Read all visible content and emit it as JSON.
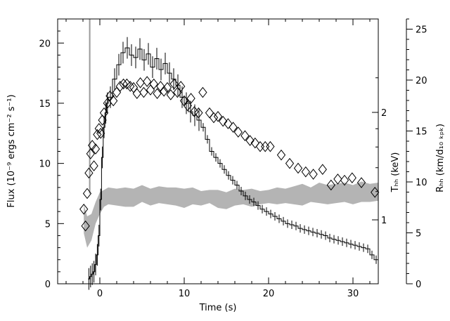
{
  "chart_data": {
    "type": "line",
    "title": "",
    "xlabel": "Time (s)",
    "ylabel_left": "Flux (10⁻⁹ ergs cm⁻² s⁻¹)",
    "ylabel_right_inner": "Tₕₕ (keV)",
    "ylabel_right_outer": "Rₕₕ (km/d₁₀ ₖₚₖ)",
    "xlim": [
      -5,
      33
    ],
    "ylim_flux": [
      0,
      22
    ],
    "ylim_radius": [
      0,
      26
    ],
    "x_ticks": [
      "0",
      "10",
      "20",
      "30"
    ],
    "y_ticks_flux": [
      "0",
      "5",
      "10",
      "15",
      "20"
    ],
    "y_ticks_temp": [
      "1",
      "2"
    ],
    "y_ticks_radius": [
      "0",
      "5",
      "10",
      "15",
      "20",
      "25"
    ],
    "series": [
      {
        "name": "Flux",
        "style": "histogram with error bars",
        "x": [
          -1.4,
          -1.2,
          -1.0,
          -0.8,
          -0.6,
          -0.4,
          -0.2,
          0.0,
          0.2,
          0.4,
          0.6,
          0.8,
          1.0,
          1.5,
          2.0,
          2.5,
          3.0,
          3.5,
          4.0,
          4.5,
          5.0,
          5.5,
          6.0,
          6.5,
          7.0,
          7.5,
          8.0,
          8.5,
          9.0,
          9.5,
          10.0,
          10.5,
          11.0,
          11.5,
          12.0,
          12.5,
          13.0,
          13.5,
          14.0,
          14.5,
          15.0,
          15.5,
          16.0,
          16.5,
          17.0,
          17.5,
          18.0,
          18.5,
          19.0,
          19.5,
          20.0,
          20.5,
          21.0,
          21.5,
          22.0,
          22.5,
          23.0,
          23.5,
          24.0,
          24.5,
          25.0,
          25.5,
          26.0,
          26.5,
          27.0,
          27.5,
          28.0,
          28.5,
          29.0,
          29.5,
          30.0,
          30.5,
          31.0,
          31.5,
          32.0,
          32.5
        ],
        "y": [
          0.4,
          0.6,
          0.8,
          1.0,
          1.6,
          2.4,
          4.0,
          7.0,
          10.5,
          13.0,
          14.2,
          15.0,
          15.5,
          17.0,
          18.2,
          19.2,
          19.6,
          19.0,
          18.8,
          19.5,
          18.6,
          19.1,
          18.0,
          18.7,
          17.8,
          18.3,
          17.5,
          17.0,
          16.5,
          15.5,
          15.0,
          14.3,
          14.0,
          13.6,
          13.0,
          12.0,
          11.0,
          10.5,
          10.0,
          9.5,
          9.0,
          8.6,
          8.2,
          7.7,
          7.3,
          7.0,
          6.8,
          6.5,
          6.2,
          6.0,
          5.8,
          5.6,
          5.4,
          5.2,
          5.0,
          4.9,
          4.8,
          4.6,
          4.5,
          4.4,
          4.3,
          4.2,
          4.1,
          4.0,
          3.8,
          3.7,
          3.6,
          3.5,
          3.4,
          3.3,
          3.2,
          3.1,
          3.0,
          2.9,
          2.4,
          2.0
        ]
      },
      {
        "name": "T_bb",
        "style": "diamonds (plotted on flux scale)",
        "x": [
          -1.9,
          -1.7,
          -1.5,
          -1.3,
          -1.1,
          -0.9,
          -0.7,
          -0.5,
          -0.3,
          -0.1,
          0.1,
          0.3,
          0.5,
          0.9,
          1.2,
          1.6,
          2.0,
          2.4,
          2.8,
          3.2,
          3.6,
          4.0,
          4.4,
          4.8,
          5.2,
          5.6,
          6.0,
          6.4,
          6.8,
          7.2,
          7.6,
          8.0,
          8.4,
          8.8,
          9.2,
          9.6,
          10.0,
          10.4,
          10.8,
          11.2,
          11.7,
          12.2,
          13.0,
          13.5,
          14.0,
          14.6,
          15.2,
          15.8,
          16.4,
          17.2,
          17.8,
          18.4,
          19.0,
          19.6,
          20.2,
          21.5,
          22.5,
          23.5,
          24.4,
          25.3,
          26.4,
          27.4,
          28.2,
          29.0,
          29.9,
          31.0,
          32.6
        ],
        "y": [
          6.2,
          4.8,
          7.5,
          9.2,
          10.8,
          11.5,
          9.8,
          11.2,
          12.4,
          12.9,
          12.5,
          13.6,
          14.2,
          15.0,
          15.6,
          15.2,
          15.9,
          16.4,
          16.6,
          16.6,
          16.4,
          16.3,
          15.8,
          16.7,
          15.9,
          16.8,
          16.1,
          16.6,
          15.8,
          16.4,
          16.0,
          16.3,
          15.7,
          16.6,
          15.9,
          16.4,
          15.2,
          14.8,
          15.4,
          14.3,
          14.2,
          15.9,
          14.2,
          13.8,
          13.9,
          13.5,
          13.3,
          13.0,
          12.6,
          12.3,
          11.9,
          11.7,
          11.4,
          11.4,
          11.4,
          10.7,
          10.0,
          9.6,
          9.3,
          9.1,
          9.5,
          8.2,
          8.7,
          8.6,
          8.8,
          8.4,
          7.6
        ]
      },
      {
        "name": "R_bb",
        "style": "grey shaded band (plotted on flux scale)",
        "x": [
          -1.9,
          -1.5,
          -1.0,
          -0.5,
          0.0,
          0.5,
          1.0,
          2.0,
          3.0,
          4.0,
          5.0,
          6.0,
          7.0,
          8.0,
          9.0,
          10.0,
          11.0,
          12.0,
          13.0,
          14.0,
          15.0,
          16.0,
          17.0,
          18.0,
          19.0,
          20.0,
          21.0,
          22.0,
          23.0,
          24.0,
          25.0,
          26.0,
          27.0,
          28.0,
          29.0,
          30.0,
          31.0,
          32.0,
          33.0
        ],
        "y_low": [
          4.2,
          3.0,
          3.6,
          5.0,
          5.8,
          6.4,
          6.6,
          6.5,
          6.4,
          6.4,
          6.8,
          6.5,
          6.7,
          6.6,
          6.5,
          6.3,
          6.6,
          6.5,
          6.7,
          6.3,
          6.2,
          6.5,
          6.6,
          6.4,
          6.6,
          6.7,
          6.6,
          6.7,
          6.6,
          6.5,
          6.8,
          6.7,
          6.6,
          6.7,
          6.8,
          6.6,
          6.8,
          6.8,
          6.9
        ],
        "y_high": [
          6.6,
          5.6,
          5.8,
          6.8,
          7.6,
          7.8,
          8.0,
          7.9,
          8.0,
          7.9,
          8.2,
          7.9,
          8.1,
          8.0,
          8.0,
          7.9,
          8.0,
          7.7,
          7.8,
          7.8,
          7.6,
          7.9,
          7.8,
          7.9,
          7.7,
          7.8,
          8.0,
          7.9,
          8.1,
          8.3,
          8.0,
          8.4,
          8.2,
          8.3,
          8.4,
          8.2,
          8.5,
          8.3,
          8.4
        ]
      }
    ],
    "grid": false,
    "colors": {
      "flux": "#000000",
      "temperature": "#000000",
      "radius_band": "#b4b4b4",
      "precursor_spike": "#9a9a9a"
    }
  }
}
